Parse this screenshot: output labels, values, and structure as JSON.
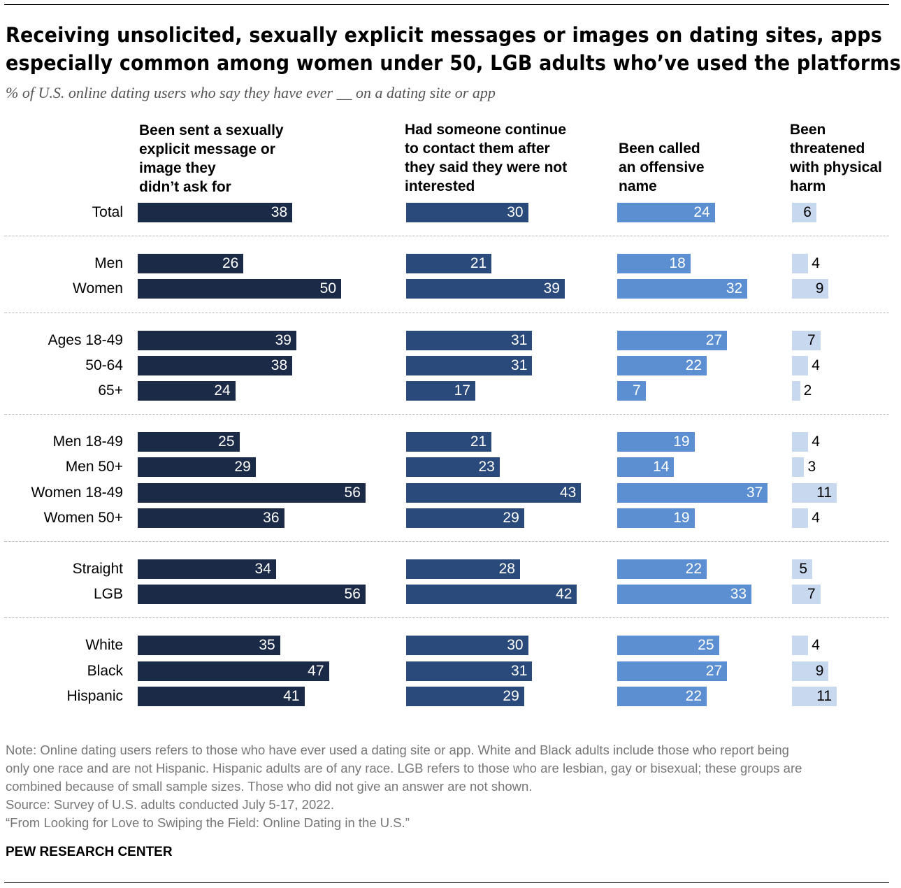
{
  "title_line1": "Receiving unsolicited, sexually explicit messages or images on dating sites, apps",
  "title_line2": "especially common among women under 50, LGB adults who’ve used the platforms",
  "subtitle": "% of U.S. online dating users who say they have ever __ on a dating site or app",
  "chart_data": {
    "type": "bar",
    "orientation": "horizontal",
    "categories": [
      "Total",
      "Men",
      "Women",
      "Ages 18-49",
      "50-64",
      "65+",
      "Men 18-49",
      "Men 50+",
      "Women 18-49",
      "Women 50+",
      "Straight",
      "LGB",
      "White",
      "Black",
      "Hispanic"
    ],
    "groups": [
      [
        "Total"
      ],
      [
        "Men",
        "Women"
      ],
      [
        "Ages 18-49",
        "50-64",
        "65+"
      ],
      [
        "Men 18-49",
        "Men 50+",
        "Women 18-49",
        "Women 50+"
      ],
      [
        "Straight",
        "LGB"
      ],
      [
        "White",
        "Black",
        "Hispanic"
      ]
    ],
    "series": [
      {
        "name": "Been sent a sexually explicit message or image they didn’t ask for",
        "color": "#1b2a47",
        "label_color": "#ffffff",
        "values": [
          38,
          26,
          50,
          39,
          38,
          24,
          25,
          29,
          56,
          36,
          34,
          56,
          35,
          47,
          41
        ]
      },
      {
        "name": "Had someone continue to contact them after they said they were not interested",
        "color": "#2a4a7c",
        "label_color": "#ffffff",
        "values": [
          30,
          21,
          39,
          31,
          31,
          17,
          21,
          23,
          43,
          29,
          28,
          42,
          30,
          31,
          29
        ]
      },
      {
        "name": "Been called an offensive name",
        "color": "#5b8fd1",
        "label_color": "#ffffff",
        "values": [
          24,
          18,
          32,
          27,
          22,
          7,
          19,
          14,
          37,
          19,
          22,
          33,
          25,
          27,
          22
        ]
      },
      {
        "name": "Been threatened with physical harm",
        "color": "#c7d8ef",
        "label_color": "#000000",
        "values": [
          6,
          4,
          9,
          7,
          4,
          2,
          4,
          3,
          11,
          4,
          5,
          7,
          4,
          9,
          11
        ]
      }
    ]
  },
  "headers": [
    "Been sent a sexually\nexplicit message or\nimage they\ndidn’t ask for",
    "Had someone continue\nto contact them after\nthey said they were not\ninterested",
    "Been called\nan offensive\nname",
    "Been\nthreatened\nwith physical\nharm"
  ],
  "notes": [
    "Note: Online dating users refers to those who have ever used a dating site or app. White and Black adults include those who report being",
    "only one race and are not Hispanic. Hispanic adults are of any race. LGB refers to those who are lesbian, gay or bisexual; these groups are",
    "combined because of small sample sizes. Those who did not give an answer are not shown.",
    "Source: Survey of U.S. adults conducted July 5-17, 2022.",
    "“From Looking for Love to Swiping the Field: Online Dating in the U.S.”"
  ],
  "brand": "PEW RESEARCH CENTER"
}
